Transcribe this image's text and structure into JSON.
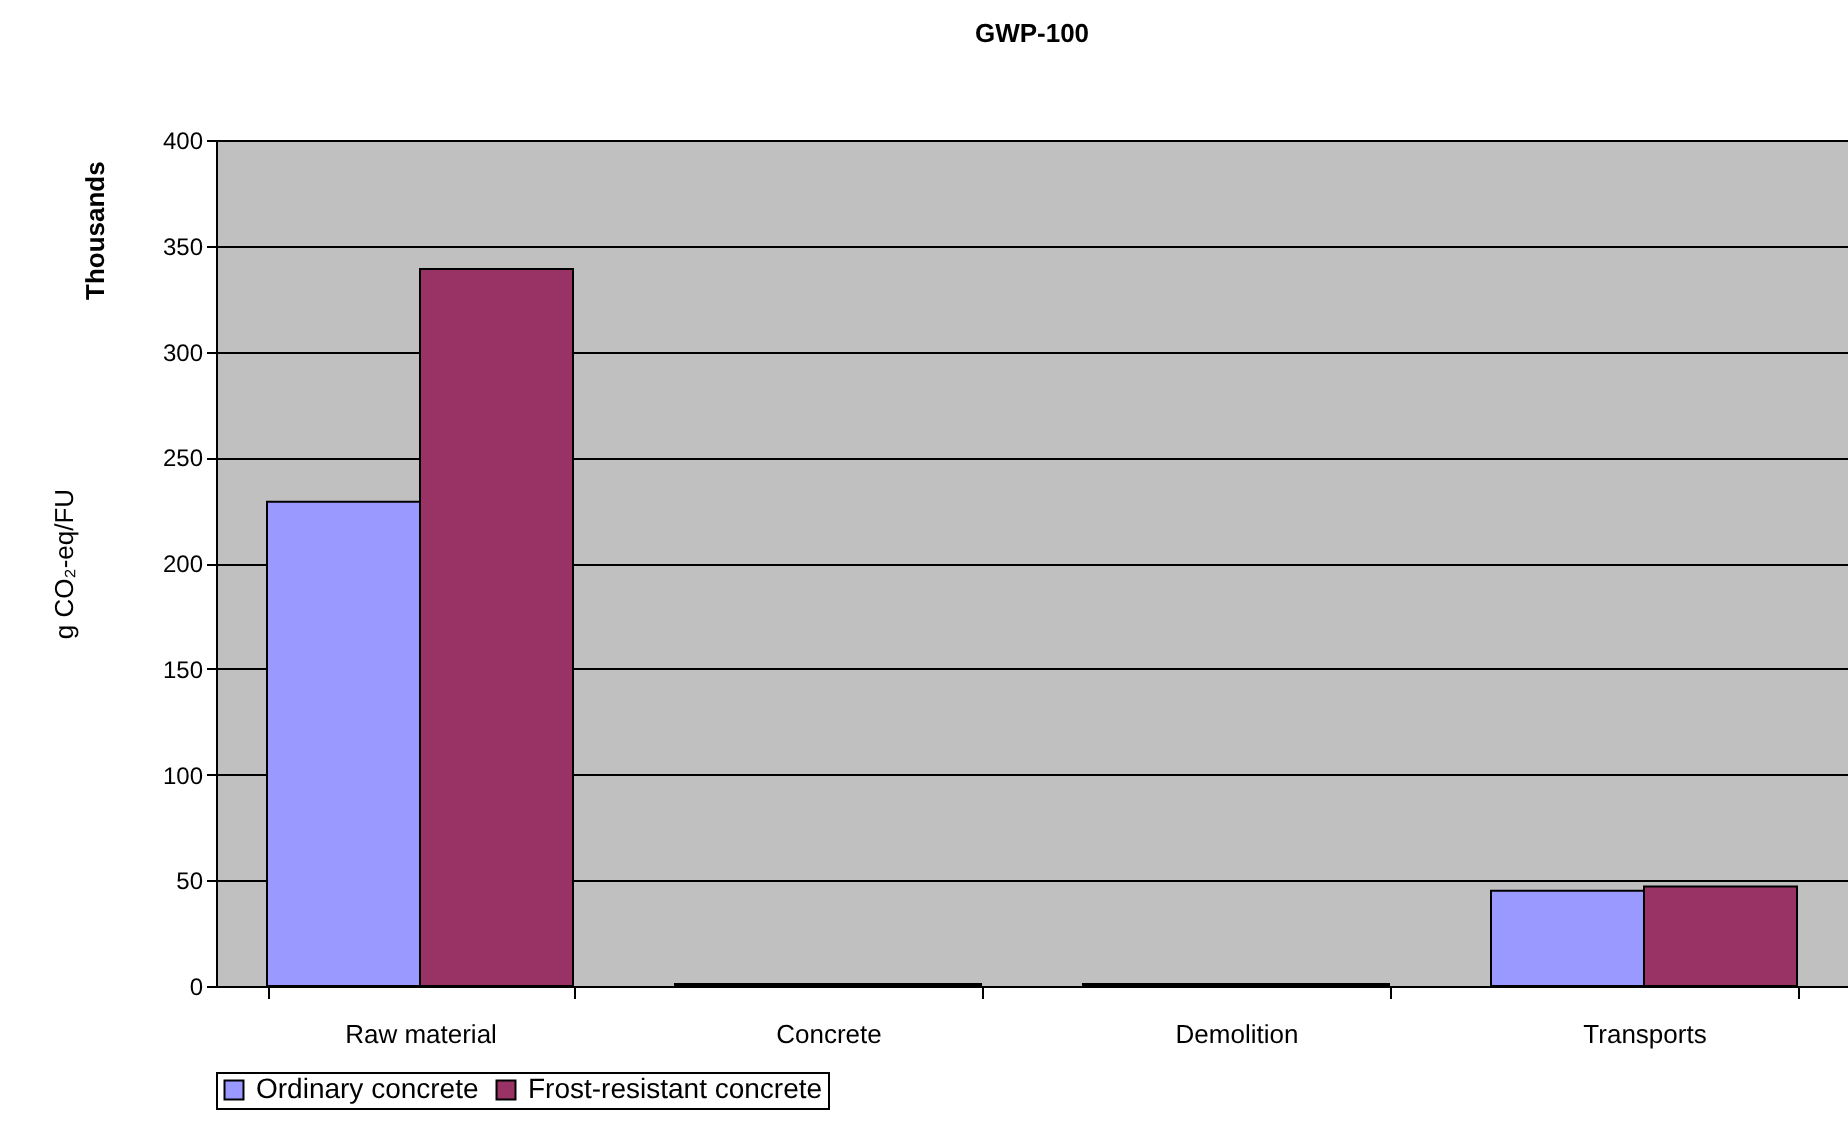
{
  "chart_data": {
    "type": "bar",
    "title": "GWP-100",
    "ylabel": "g CO₂-eq/FU",
    "annotations": [
      "Thousands"
    ],
    "categories": [
      "Raw material",
      "Concrete",
      "Demolition",
      "Transports"
    ],
    "series": [
      {
        "name": "Ordinary concrete",
        "color": "#9999ff",
        "values": [
          229,
          1,
          1,
          45
        ]
      },
      {
        "name": "Frost-resistant concrete",
        "color": "#993366",
        "values": [
          339,
          1,
          1,
          47
        ]
      }
    ],
    "ylim": [
      0,
      400
    ],
    "yticks": [
      0,
      50,
      100,
      150,
      200,
      250,
      300,
      350,
      400
    ],
    "grid": "y",
    "legend": "bottom"
  }
}
